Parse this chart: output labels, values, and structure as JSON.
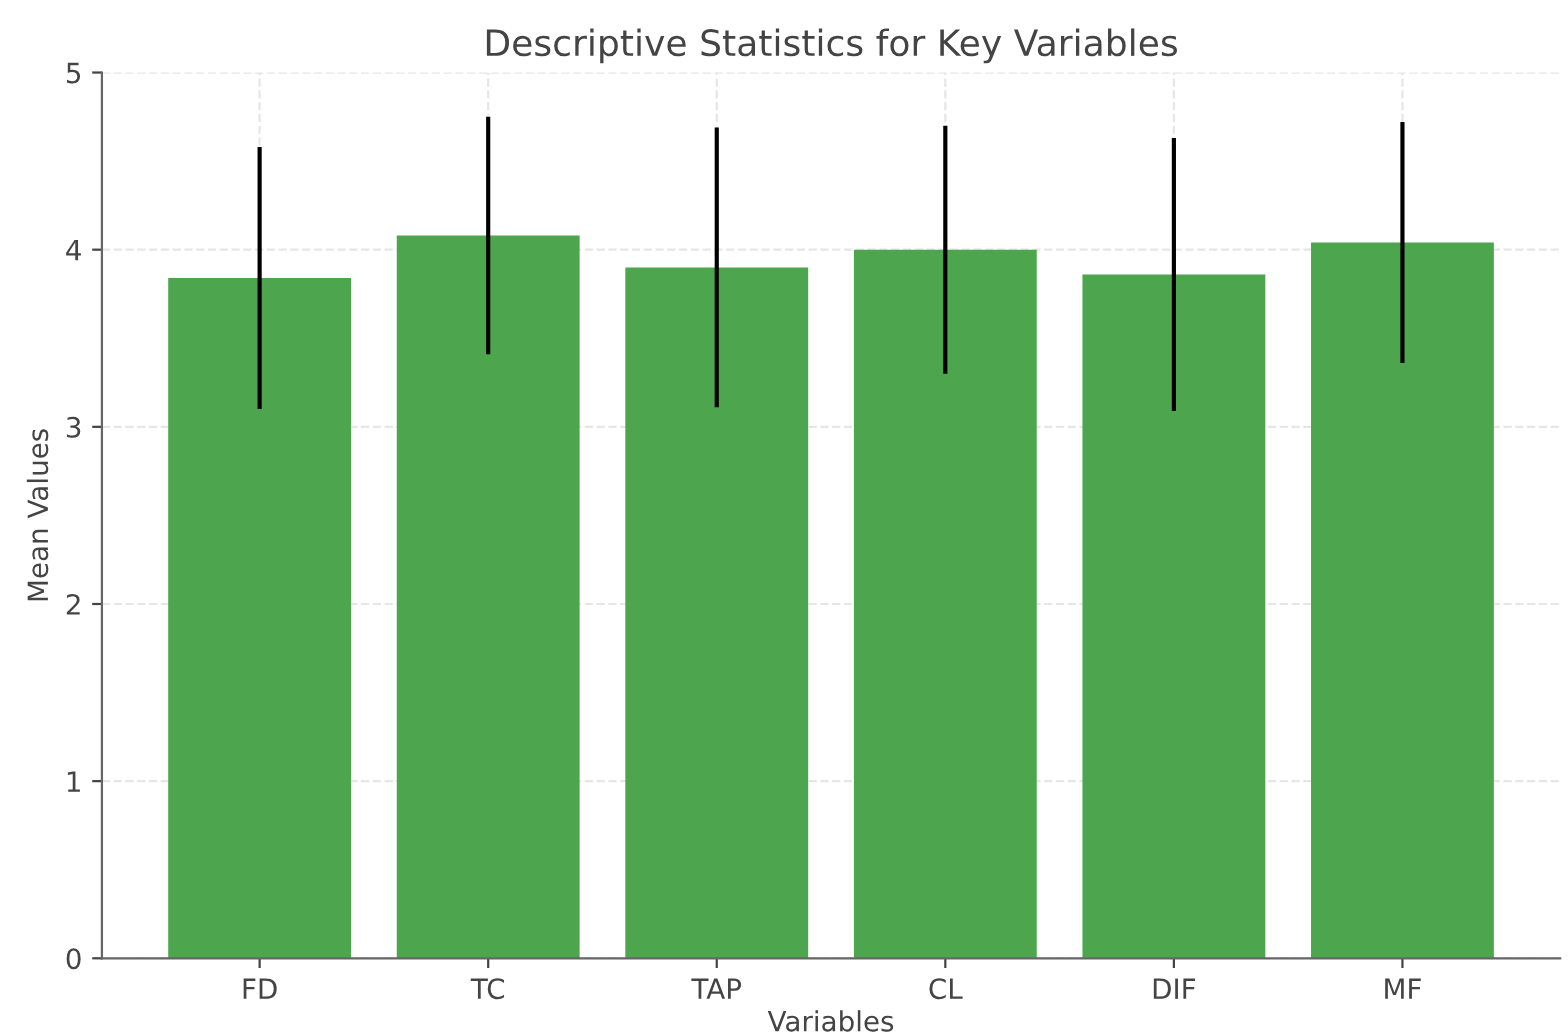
{
  "chart_data": {
    "type": "bar",
    "title": "Descriptive Statistics for Key Variables",
    "xlabel": "Variables",
    "ylabel": "Mean Values",
    "categories": [
      "FD",
      "TC",
      "TAP",
      "CL",
      "DIF",
      "MF"
    ],
    "values": [
      3.84,
      4.08,
      3.9,
      4.0,
      3.86,
      4.04
    ],
    "errors": [
      0.74,
      0.67,
      0.79,
      0.7,
      0.77,
      0.68
    ],
    "color": "#4da64d",
    "ylim": [
      0,
      5
    ],
    "yticks": [
      0,
      1,
      2,
      3,
      4,
      5
    ],
    "grid": true
  }
}
